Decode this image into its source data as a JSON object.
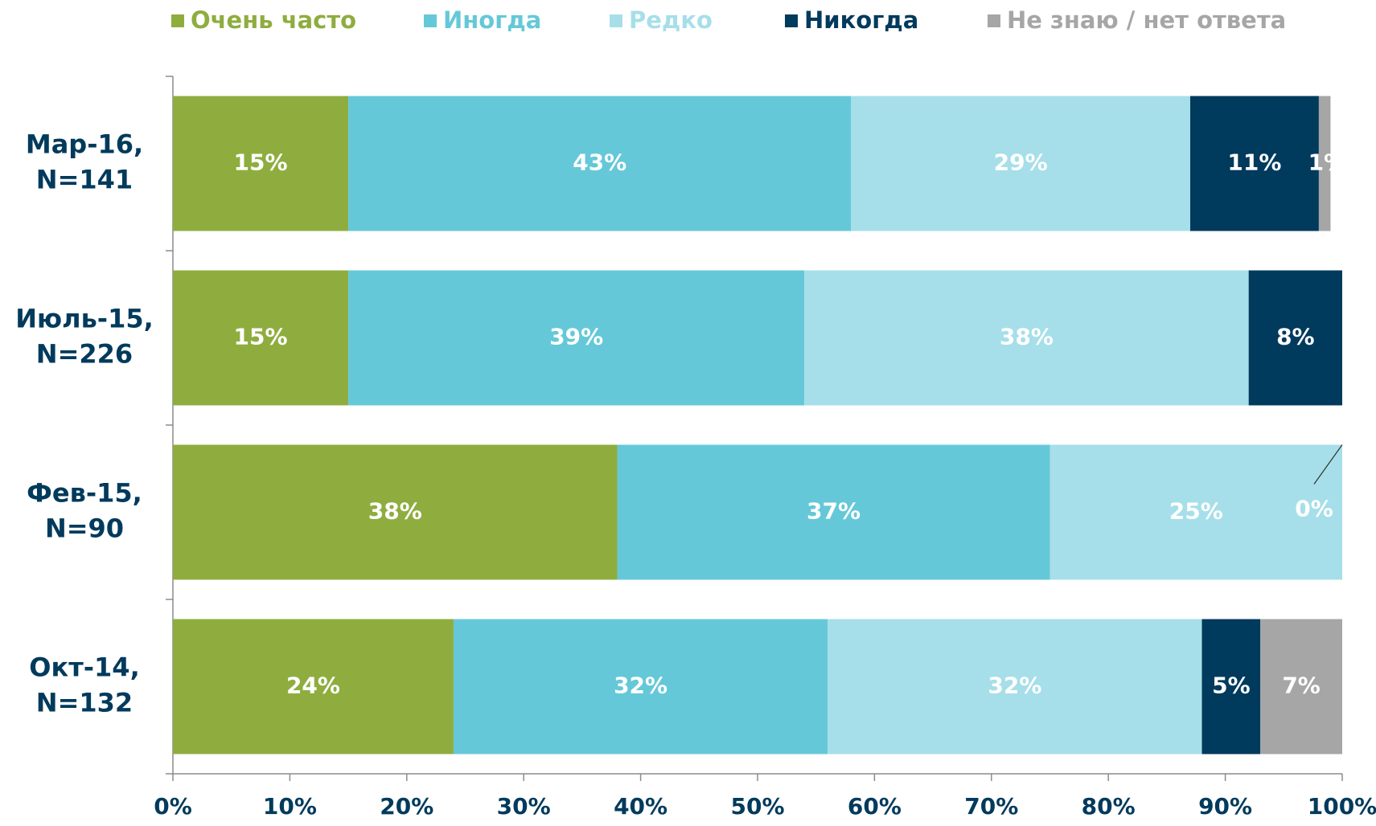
{
  "chart_data": {
    "type": "stacked-barh",
    "categories": [
      "Мар-16, N=141",
      "Июль-15, N=226",
      "Фев-15, N=90",
      "Окт-14, N=132"
    ],
    "series": [
      {
        "name": "Очень часто",
        "color": "#8fad3f",
        "values": [
          15,
          15,
          38,
          24
        ],
        "value_labels": [
          "15%",
          "15%",
          "38%",
          "24%"
        ]
      },
      {
        "name": "Иногда",
        "color": "#65c8d8",
        "values": [
          43,
          39,
          37,
          32
        ],
        "value_labels": [
          "43%",
          "39%",
          "37%",
          "32%"
        ]
      },
      {
        "name": "Редко",
        "color": "#a6dfe9",
        "values": [
          29,
          38,
          25,
          32
        ],
        "value_labels": [
          "29%",
          "38%",
          "25%",
          "32%"
        ]
      },
      {
        "name": "Никогда",
        "color": "#003a5c",
        "values": [
          11,
          8,
          0,
          5
        ],
        "value_labels": [
          "11%",
          "8%",
          "0%",
          "5%"
        ]
      },
      {
        "name": "Не знаю / нет ответа",
        "color": "#a6a6a6",
        "values": [
          1,
          null,
          null,
          7
        ],
        "value_labels": [
          "1%",
          null,
          null,
          "7%"
        ]
      }
    ],
    "xlim": [
      0,
      100
    ],
    "xticks": [
      {
        "value": 0,
        "label": "0%"
      },
      {
        "value": 10,
        "label": "10%"
      },
      {
        "value": 20,
        "label": "20%"
      },
      {
        "value": 30,
        "label": "30%"
      },
      {
        "value": 40,
        "label": "40%"
      },
      {
        "value": 50,
        "label": "50%"
      },
      {
        "value": 60,
        "label": "60%"
      },
      {
        "value": 70,
        "label": "70%"
      },
      {
        "value": 80,
        "label": "80%"
      },
      {
        "value": 90,
        "label": "90%"
      },
      {
        "value": 100,
        "label": "100%"
      }
    ],
    "legend": "top"
  }
}
